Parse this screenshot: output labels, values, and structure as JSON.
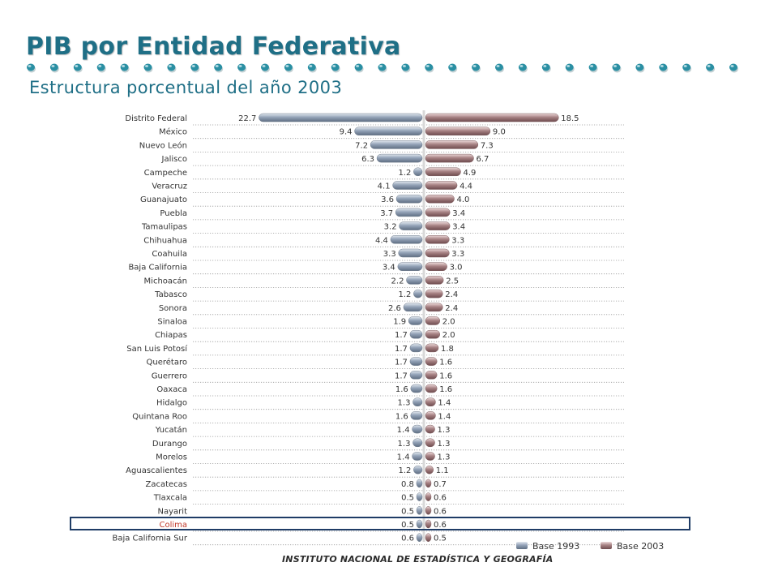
{
  "header": {
    "title": "PIB por Entidad Federativa",
    "subtitle": "Estructura porcentual del año 2003"
  },
  "footer": {
    "institution": "INSTITUTO NACIONAL DE ESTADÍSTICA Y GEOGRAFÍA"
  },
  "colors": {
    "title": "#1f6f86",
    "dots": "#2a8fa3",
    "base1993": "#94a3b8",
    "base2003": "#a78284",
    "highlight_box": "#1f3c66",
    "highlight_text": "#c0392b",
    "label_text": "#333333"
  },
  "chart_data": {
    "type": "bar",
    "orientation": "horizontal-diverging",
    "series": [
      {
        "name": "Base 1993",
        "values": [
          22.7,
          9.4,
          7.2,
          6.3,
          1.2,
          4.1,
          3.6,
          3.7,
          3.2,
          4.4,
          3.3,
          3.4,
          2.2,
          1.2,
          2.6,
          1.9,
          1.7,
          1.7,
          1.7,
          1.7,
          1.6,
          1.3,
          1.6,
          1.4,
          1.3,
          1.4,
          1.2,
          0.8,
          0.5,
          0.5,
          0.5,
          0.6
        ]
      },
      {
        "name": "Base 2003",
        "values": [
          18.5,
          9.0,
          7.3,
          6.7,
          4.9,
          4.4,
          4.0,
          3.4,
          3.4,
          3.3,
          3.3,
          3.0,
          2.5,
          2.4,
          2.4,
          2.0,
          2.0,
          1.8,
          1.6,
          1.6,
          1.6,
          1.4,
          1.4,
          1.3,
          1.3,
          1.3,
          1.1,
          0.7,
          0.6,
          0.6,
          0.6,
          0.5
        ]
      }
    ],
    "categories": [
      "Distrito Federal",
      "México",
      "Nuevo León",
      "Jalisco",
      "Campeche",
      "Veracruz",
      "Guanajuato",
      "Puebla",
      "Tamaulipas",
      "Chihuahua",
      "Coahuila",
      "Baja California",
      "Michoacán",
      "Tabasco",
      "Sonora",
      "Sinaloa",
      "Chiapas",
      "San Luis Potosí",
      "Querétaro",
      "Guerrero",
      "Oaxaca",
      "Hidalgo",
      "Quintana Roo",
      "Yucatán",
      "Durango",
      "Morelos",
      "Aguascalientes",
      "Zacatecas",
      "Tlaxcala",
      "Nayarit",
      "Colima",
      "Baja California Sur"
    ],
    "highlighted_category": "Colima",
    "legend_position": "bottom-right"
  }
}
